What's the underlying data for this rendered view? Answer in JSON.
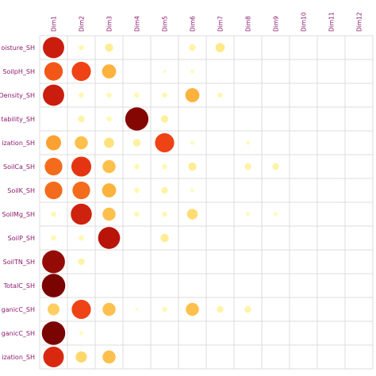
{
  "chart_data": {
    "type": "heatmap",
    "marker": "circle",
    "grid": true,
    "label_color": "#8b1a6b",
    "columns": [
      "Dim1",
      "Dim2",
      "Dim3",
      "Dim4",
      "Dim5",
      "Dim6",
      "Dim7",
      "Dim8",
      "Dim9",
      "Dim10",
      "Dim11",
      "Dim12"
    ],
    "rows": [
      "oisture_SH",
      "SoilpH_SH",
      "Density_SH",
      "tability_SH",
      "ization_SH",
      "SoilCa_SH",
      "SoilK_SH",
      "SoilMg_SH",
      "SoilP_SH",
      "SoilTN_SH",
      "TotalC_SH",
      "ganicC_SH",
      "ganicC_SH",
      "ization_SH"
    ],
    "values": [
      [
        0.8,
        0.05,
        0.12,
        0.0,
        0.0,
        0.08,
        0.15,
        0.0,
        0.0,
        0.0,
        0.0,
        0.0
      ],
      [
        0.6,
        0.65,
        0.35,
        0.0,
        0.02,
        0.03,
        0.0,
        0.0,
        0.0,
        0.0,
        0.0,
        0.0
      ],
      [
        0.8,
        0.05,
        0.05,
        0.05,
        0.05,
        0.35,
        0.05,
        0.0,
        0.0,
        0.0,
        0.0,
        0.0
      ],
      [
        0.0,
        0.08,
        0.05,
        0.95,
        0.1,
        0.0,
        0.0,
        0.0,
        0.0,
        0.0,
        0.0,
        0.0
      ],
      [
        0.4,
        0.3,
        0.18,
        0.1,
        0.65,
        0.03,
        0.0,
        0.03,
        0.0,
        0.0,
        0.0,
        0.0
      ],
      [
        0.55,
        0.7,
        0.3,
        0.05,
        0.05,
        0.12,
        0.0,
        0.08,
        0.08,
        0.0,
        0.0,
        0.0
      ],
      [
        0.55,
        0.55,
        0.35,
        0.05,
        0.08,
        0.03,
        0.0,
        0.0,
        0.0,
        0.0,
        0.0,
        0.0
      ],
      [
        0.05,
        0.78,
        0.3,
        0.05,
        0.05,
        0.2,
        0.0,
        0.03,
        0.03,
        0.0,
        0.0,
        0.0
      ],
      [
        0.05,
        0.05,
        0.85,
        0.0,
        0.12,
        0.0,
        0.0,
        0.0,
        0.0,
        0.0,
        0.0,
        0.0
      ],
      [
        0.92,
        0.08,
        0.0,
        0.0,
        0.0,
        0.0,
        0.0,
        0.0,
        0.0,
        0.0,
        0.0,
        0.0
      ],
      [
        0.97,
        0.0,
        0.0,
        0.0,
        0.0,
        0.0,
        0.0,
        0.0,
        0.0,
        0.0,
        0.0,
        0.0
      ],
      [
        0.25,
        0.65,
        0.3,
        0.02,
        0.05,
        0.3,
        0.08,
        0.08,
        0.0,
        0.0,
        0.0,
        0.0
      ],
      [
        0.97,
        0.03,
        0.0,
        0.0,
        0.0,
        0.0,
        0.0,
        0.0,
        0.0,
        0.0,
        0.0,
        0.0
      ],
      [
        0.75,
        0.22,
        0.3,
        0.0,
        0.0,
        0.0,
        0.0,
        0.0,
        0.0,
        0.0,
        0.0,
        0.0
      ]
    ],
    "value_range": [
      0,
      1
    ],
    "color_scale": [
      "#ffffcc",
      "#ffe680",
      "#fdb73f",
      "#f7801f",
      "#ee3b14",
      "#c1160b",
      "#6b0000"
    ]
  }
}
